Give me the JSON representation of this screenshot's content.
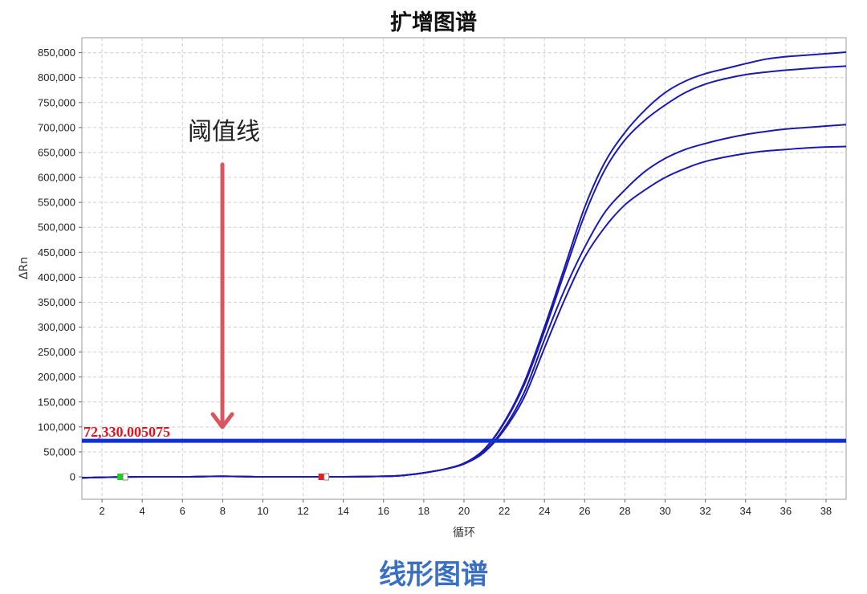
{
  "page": {
    "title": "扩增图谱",
    "caption": "线形图谱"
  },
  "annotation": {
    "text": "阈值线",
    "arrow_color": "#d9555f"
  },
  "chart_data": {
    "type": "line",
    "title": "扩增图谱",
    "xlabel": "循环",
    "ylabel": "ΔRn",
    "xlim": [
      1,
      39
    ],
    "ylim": [
      -45000,
      880000
    ],
    "xticks": [
      2,
      4,
      6,
      8,
      10,
      12,
      14,
      16,
      18,
      20,
      22,
      24,
      26,
      28,
      30,
      32,
      34,
      36,
      38
    ],
    "yticks": [
      0,
      50000,
      100000,
      150000,
      200000,
      250000,
      300000,
      350000,
      400000,
      450000,
      500000,
      550000,
      600000,
      650000,
      700000,
      750000,
      800000,
      850000
    ],
    "ytick_labels": [
      "0",
      "50,000",
      "100,000",
      "150,000",
      "200,000",
      "250,000",
      "300,000",
      "350,000",
      "400,000",
      "450,000",
      "500,000",
      "550,000",
      "600,000",
      "650,000",
      "700,000",
      "750,000",
      "800,000",
      "850,000"
    ],
    "grid": true,
    "line_color": "#1a1ab0",
    "threshold": {
      "value": 72330.005075,
      "label": "72,330.005075",
      "color": "#1030d0"
    },
    "baseline_markers": [
      {
        "x": 3,
        "color": "#22cc22"
      },
      {
        "x": 13,
        "color": "#dd2222"
      }
    ],
    "series": [
      {
        "x": [
          1,
          2,
          4,
          6,
          8,
          10,
          12,
          14,
          16,
          17,
          18,
          19,
          20,
          21,
          22,
          23,
          24,
          25,
          26,
          27,
          28,
          29,
          30,
          31,
          32,
          33,
          34,
          35,
          36,
          37,
          38,
          39
        ],
        "values": [
          -2000,
          -1000,
          0,
          0,
          1000,
          0,
          0,
          0,
          1000,
          3000,
          8000,
          15000,
          27000,
          55000,
          110000,
          190000,
          300000,
          420000,
          540000,
          630000,
          690000,
          735000,
          770000,
          793000,
          808000,
          818000,
          828000,
          837000,
          842000,
          845000,
          848000,
          851000
        ]
      },
      {
        "x": [
          1,
          2,
          4,
          6,
          8,
          10,
          12,
          14,
          16,
          17,
          18,
          19,
          20,
          21,
          22,
          23,
          24,
          25,
          26,
          27,
          28,
          29,
          30,
          31,
          32,
          33,
          34,
          35,
          36,
          37,
          38,
          39
        ],
        "values": [
          -2000,
          -1000,
          0,
          0,
          1000,
          0,
          0,
          0,
          1000,
          3000,
          8000,
          15000,
          27000,
          54000,
          108000,
          185000,
          292000,
          410000,
          525000,
          615000,
          675000,
          715000,
          745000,
          770000,
          787000,
          798000,
          806000,
          811000,
          815000,
          818000,
          821000,
          823000
        ]
      },
      {
        "x": [
          1,
          2,
          4,
          6,
          8,
          10,
          12,
          14,
          16,
          17,
          18,
          19,
          20,
          21,
          22,
          23,
          24,
          25,
          26,
          27,
          28,
          29,
          30,
          31,
          32,
          33,
          34,
          35,
          36,
          37,
          38,
          39
        ],
        "values": [
          -2000,
          -1000,
          0,
          0,
          1000,
          0,
          0,
          0,
          1000,
          3000,
          8000,
          15000,
          26000,
          50000,
          98000,
          170000,
          275000,
          375000,
          460000,
          530000,
          575000,
          612000,
          638000,
          656000,
          668000,
          678000,
          686000,
          692000,
          697000,
          700000,
          703000,
          706000
        ]
      },
      {
        "x": [
          1,
          2,
          4,
          6,
          8,
          10,
          12,
          14,
          16,
          17,
          18,
          19,
          20,
          21,
          22,
          23,
          24,
          25,
          26,
          27,
          28,
          29,
          30,
          31,
          32,
          33,
          34,
          35,
          36,
          37,
          38,
          39
        ],
        "values": [
          -2000,
          -1000,
          0,
          0,
          1000,
          0,
          0,
          0,
          1000,
          3000,
          8000,
          15000,
          26000,
          49000,
          94000,
          160000,
          258000,
          355000,
          440000,
          500000,
          545000,
          575000,
          600000,
          618000,
          632000,
          641000,
          648000,
          653000,
          656000,
          659000,
          661000,
          662000
        ]
      }
    ]
  }
}
